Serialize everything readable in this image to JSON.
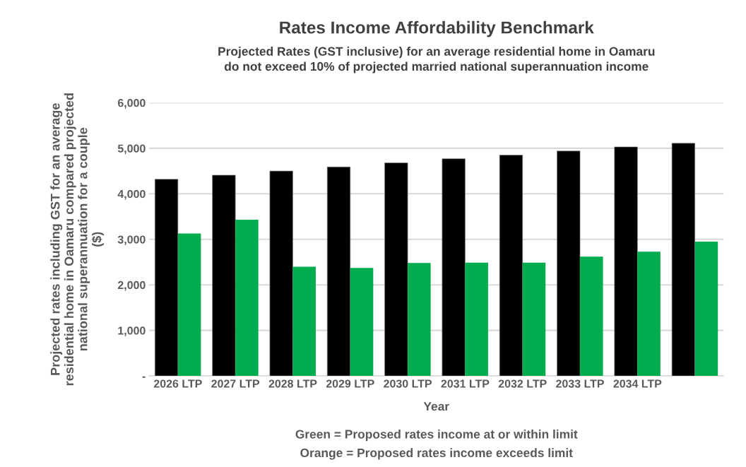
{
  "chart_data": {
    "type": "bar",
    "title": "Rates Income Affordability Benchmark",
    "subtitle": "Projected Rates (GST inclusive) for an average residential home in Oamaru\ndo not exceed 10% of projected married national superannuation income",
    "xlabel": "Year",
    "ylabel": "Projected rates including GST for an average\nresidential home in Oamaru compared projected\nnational superannuation for a couple\n($)",
    "categories": [
      "2026 LTP",
      "2027 LTP",
      "2028 LTP",
      "2029 LTP",
      "2030 LTP",
      "2031 LTP",
      "2032 LTP",
      "2033 LTP",
      "2034 LTP",
      null
    ],
    "series": [
      {
        "color": "#000000",
        "values": [
          4320,
          4410,
          4500,
          4590,
          4680,
          4770,
          4850,
          4940,
          5030,
          5110
        ]
      },
      {
        "color": "#00ad4e",
        "values": [
          3130,
          3430,
          2400,
          2370,
          2480,
          2490,
          2490,
          2620,
          2730,
          2950
        ]
      }
    ],
    "ylim": [
      0,
      6000
    ],
    "yticks": [
      {
        "value": 0,
        "label": "-"
      },
      {
        "value": 1000,
        "label": "1,000"
      },
      {
        "value": 2000,
        "label": "2,000"
      },
      {
        "value": 3000,
        "label": "3,000"
      },
      {
        "value": 4000,
        "label": "4,000"
      },
      {
        "value": 5000,
        "label": "5,000"
      },
      {
        "value": 6000,
        "label": "6,000"
      }
    ],
    "grid": "y",
    "legend": false,
    "annotations": [
      "Green = Proposed rates income at or within limit",
      "Orange = Proposed rates income exceeds limit"
    ]
  }
}
